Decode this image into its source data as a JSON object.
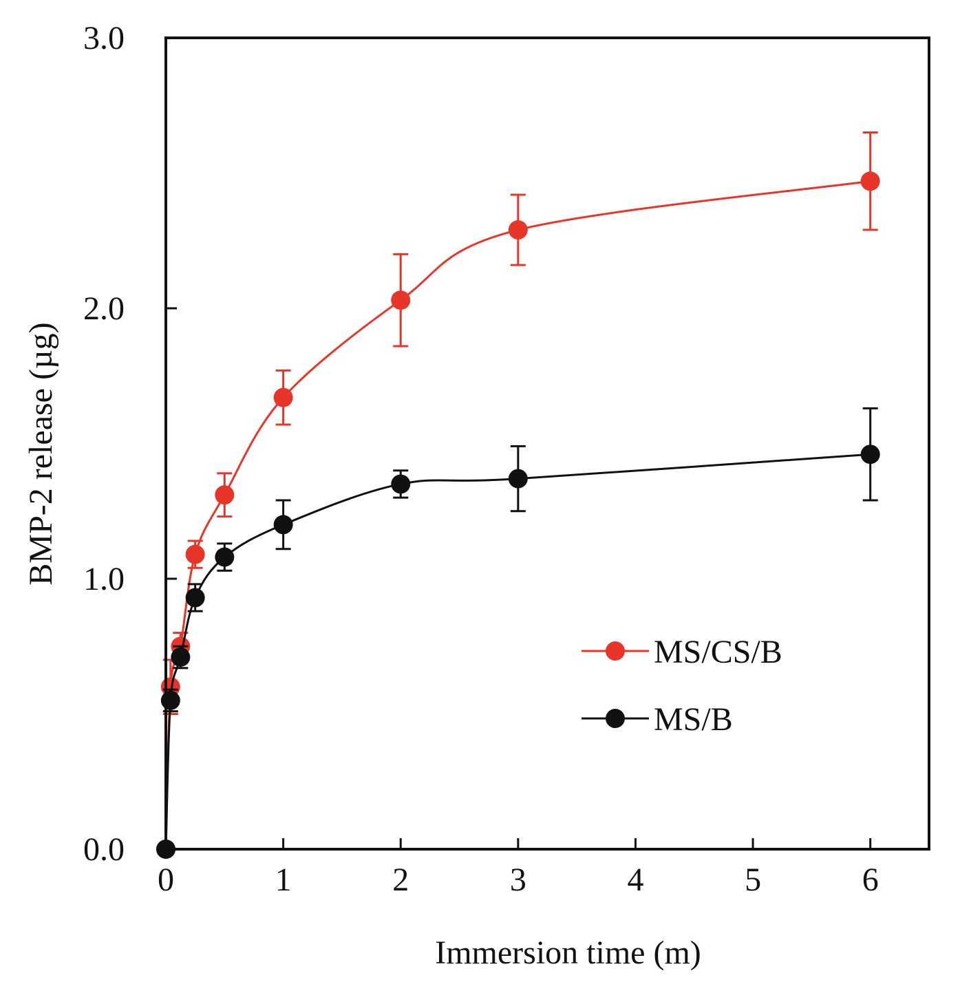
{
  "chart_data": {
    "type": "line",
    "title": "",
    "xlabel": "Immersion time (m)",
    "ylabel": "BMP-2 release (µg)",
    "xlim": [
      0,
      6.5
    ],
    "ylim": [
      0,
      3.0
    ],
    "xticks": [
      0,
      1,
      2,
      3,
      4,
      5,
      6
    ],
    "xtick_labels": [
      "0",
      "1",
      "2",
      "3",
      "4",
      "5",
      "6"
    ],
    "yticks": [
      0,
      1,
      2,
      3
    ],
    "ytick_labels": [
      "0.0",
      "1.0",
      "2.0",
      "3.0"
    ],
    "grid": false,
    "legend_position": "center-right",
    "series": [
      {
        "name": "MS/CS/B",
        "color": "#e8352a",
        "x": [
          0,
          0.04,
          0.125,
          0.25,
          0.5,
          1,
          2,
          3,
          6
        ],
        "y": [
          0,
          0.6,
          0.75,
          1.09,
          1.31,
          1.67,
          2.03,
          2.29,
          2.47
        ],
        "error": [
          0,
          0.1,
          0.05,
          0.05,
          0.08,
          0.1,
          0.17,
          0.13,
          0.18
        ]
      },
      {
        "name": "MS/B",
        "color": "#111111",
        "x": [
          0,
          0.04,
          0.125,
          0.25,
          0.5,
          1,
          2,
          3,
          6
        ],
        "y": [
          0,
          0.55,
          0.71,
          0.93,
          1.08,
          1.2,
          1.35,
          1.37,
          1.46
        ],
        "error": [
          0,
          0.04,
          0.04,
          0.05,
          0.05,
          0.09,
          0.05,
          0.12,
          0.17
        ]
      }
    ]
  }
}
